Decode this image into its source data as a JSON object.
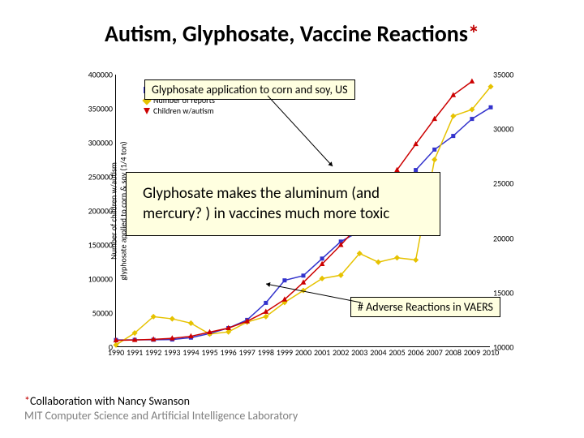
{
  "title_main": "Autism, Glyphosate, Vaccine Reactions",
  "title_asterisk": "*",
  "chart": {
    "y_left": {
      "min": 0,
      "max": 400000,
      "step": 50000,
      "ticks": [
        0,
        50000,
        100000,
        150000,
        200000,
        250000,
        300000,
        350000,
        400000
      ]
    },
    "y_right": {
      "min": 10000,
      "max": 35000,
      "step": 5000,
      "ticks": [
        10000,
        15000,
        20000,
        25000,
        30000,
        35000
      ]
    },
    "x": {
      "min": 1990,
      "max": 2010,
      "ticks": [
        1990,
        1991,
        1992,
        1993,
        1994,
        1995,
        1996,
        1997,
        1998,
        1999,
        2000,
        2001,
        2002,
        2003,
        2004,
        2005,
        2006,
        2007,
        2008,
        2009,
        2010
      ]
    },
    "series": [
      {
        "name": "glyphosate",
        "label": "glyphosate (¼ ton)",
        "color": "#3333cc",
        "marker": "square",
        "axis": "left",
        "points": [
          [
            1990,
            10500
          ],
          [
            1991,
            10700
          ],
          [
            1992,
            10900
          ],
          [
            1993,
            11200
          ],
          [
            1994,
            14000
          ],
          [
            1995,
            20000
          ],
          [
            1996,
            28000
          ],
          [
            1997,
            40000
          ],
          [
            1998,
            65000
          ],
          [
            1999,
            98000
          ],
          [
            2000,
            105000
          ],
          [
            2001,
            130000
          ],
          [
            2002,
            155000
          ],
          [
            2003,
            170000
          ],
          [
            2004,
            200000
          ],
          [
            2005,
            225000
          ],
          [
            2006,
            260000
          ],
          [
            2007,
            290000
          ],
          [
            2008,
            310000
          ],
          [
            2009,
            335000
          ],
          [
            2010,
            352000
          ]
        ]
      },
      {
        "name": "reports",
        "label": "Number of reports",
        "color": "#e6c200",
        "marker": "diamond",
        "axis": "right",
        "points": [
          [
            1990,
            10200
          ],
          [
            1991,
            11300
          ],
          [
            1992,
            12800
          ],
          [
            1993,
            12600
          ],
          [
            1994,
            12200
          ],
          [
            1995,
            11200
          ],
          [
            1996,
            11400
          ],
          [
            1997,
            12300
          ],
          [
            1998,
            12800
          ],
          [
            1999,
            14100
          ],
          [
            2000,
            15200
          ],
          [
            2001,
            16300
          ],
          [
            2002,
            16600
          ],
          [
            2003,
            18600
          ],
          [
            2004,
            17800
          ],
          [
            2005,
            18200
          ],
          [
            2006,
            18000
          ],
          [
            2007,
            27200
          ],
          [
            2008,
            31200
          ],
          [
            2009,
            31800
          ],
          [
            2010,
            33900
          ]
        ]
      },
      {
        "name": "autism",
        "label": "Children w/autism",
        "color": "#cc0000",
        "marker": "triangle",
        "axis": "left",
        "points": [
          [
            1990,
            10000
          ],
          [
            1991,
            10500
          ],
          [
            1992,
            11500
          ],
          [
            1993,
            13000
          ],
          [
            1994,
            16000
          ],
          [
            1995,
            22000
          ],
          [
            1996,
            28000
          ],
          [
            1997,
            38000
          ],
          [
            1998,
            52000
          ],
          [
            1999,
            70000
          ],
          [
            2000,
            95000
          ],
          [
            2001,
            122000
          ],
          [
            2002,
            150000
          ],
          [
            2003,
            180000
          ],
          [
            2004,
            220000
          ],
          [
            2005,
            260000
          ],
          [
            2006,
            298000
          ],
          [
            2007,
            335000
          ],
          [
            2008,
            370000
          ],
          [
            2009,
            390000
          ]
        ]
      }
    ],
    "y_label": "Number of children w/autism\nglyphosate applied to corn & soy (1/4 ton)",
    "background_color": "#ffffff",
    "line_width": 1.5,
    "marker_size": 5
  },
  "callouts": {
    "top": "Glyphosate application to corn and soy, US",
    "mid_line1": "Glyphosate makes the aluminum (and",
    "mid_line2": "mercury? ) in vaccines much more toxic",
    "bottom": "# Adverse Reactions in VAERS"
  },
  "legend_items": [
    "glyphosate (¼ ton)",
    "Number of reports",
    "Children w/autism"
  ],
  "footer": {
    "asterisk": "*",
    "collab": "Collaboration with Nancy Swanson",
    "lab": "MIT Computer Science and Artificial Intelligence Laboratory"
  }
}
